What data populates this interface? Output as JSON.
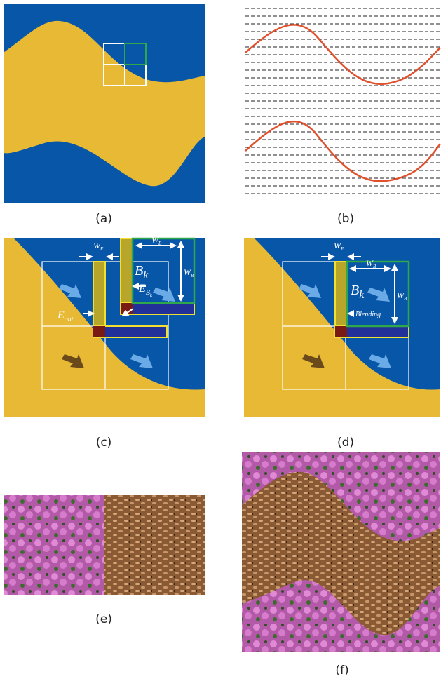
{
  "captions": [
    "(a)",
    "(b)",
    "(c)",
    "(d)",
    "(e)",
    "(f)"
  ],
  "panel_c": {
    "we": {
      "main": "W",
      "sub": "E"
    },
    "wb_top": {
      "main": "W",
      "sub": "B"
    },
    "wb_side": {
      "main": "W",
      "sub": "B"
    },
    "bk": {
      "main": "B",
      "sub": "k"
    },
    "ebk": {
      "main": "E",
      "sub": "B",
      "subsub": "k"
    },
    "eout": {
      "main": "E",
      "sub": "out"
    }
  },
  "panel_d": {
    "we": {
      "main": "W",
      "sub": "E"
    },
    "wb_top": {
      "main": "W",
      "sub": "B"
    },
    "wb_side": {
      "main": "W",
      "sub": "B"
    },
    "bk": {
      "main": "B",
      "sub": "k"
    },
    "blending": "Blending"
  }
}
